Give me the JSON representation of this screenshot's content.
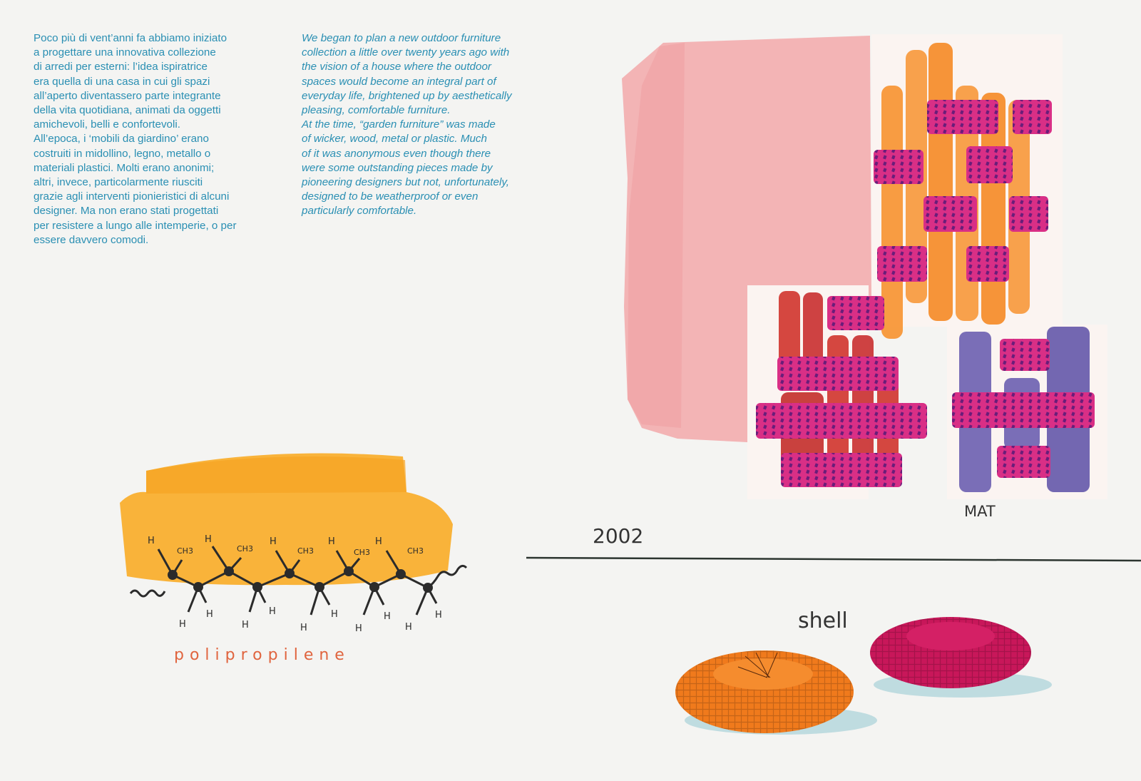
{
  "text": {
    "italian": "Poco più di vent’anni fa abbiamo iniziato\na progettare una innovativa collezione\ndi arredi per esterni: l’idea ispiratrice\nera quella di una casa in cui gli spazi\nall’aperto diventassero parte integrante\ndella vita quotidiana, animati da oggetti\namichevoli, belli e confortevoli.\nAll’epoca, i ‘mobili da giardino’ erano\ncostruiti in midollino, legno, metallo o\nmateriali plastici. Molti erano anonimi;\naltri, invece, particolarmente riusciti\ngrazie agli interventi pionieristici di alcuni\ndesigner. Ma non erano stati progettati\nper resistere a lungo alle intemperie, o per\nessere davvero comodi.",
    "english": "We began to plan a new outdoor furniture\ncollection a little over twenty years ago with\nthe vision of a house where the outdoor\nspaces would become an integral part of\neveryday life, brightened up by aesthetically\npleasing, comfortable furniture.\nAt the time, “garden furniture” was made\nof wicker, wood, metal or plastic. Much\nof it was anonymous even though there\nwere some outstanding pieces made by\npioneering designers but not, unfortunately,\ndesigned to be weatherproof or even\nparticularly comfortable."
  },
  "labels": {
    "polymer": "polipropilene",
    "methyl": "CH3",
    "hydrogen": "H",
    "mat": "MAT",
    "year": "2002",
    "shell": "shell"
  },
  "colors": {
    "text_blue": "#2a8fb3",
    "pink_wash": "#f2a8aa",
    "orange": "#f7922f",
    "magenta": "#d92f86",
    "red": "#d0342c",
    "violet": "#6c5fb0",
    "yellow": "#f8ad2a",
    "polymer_label": "#e0643e"
  }
}
